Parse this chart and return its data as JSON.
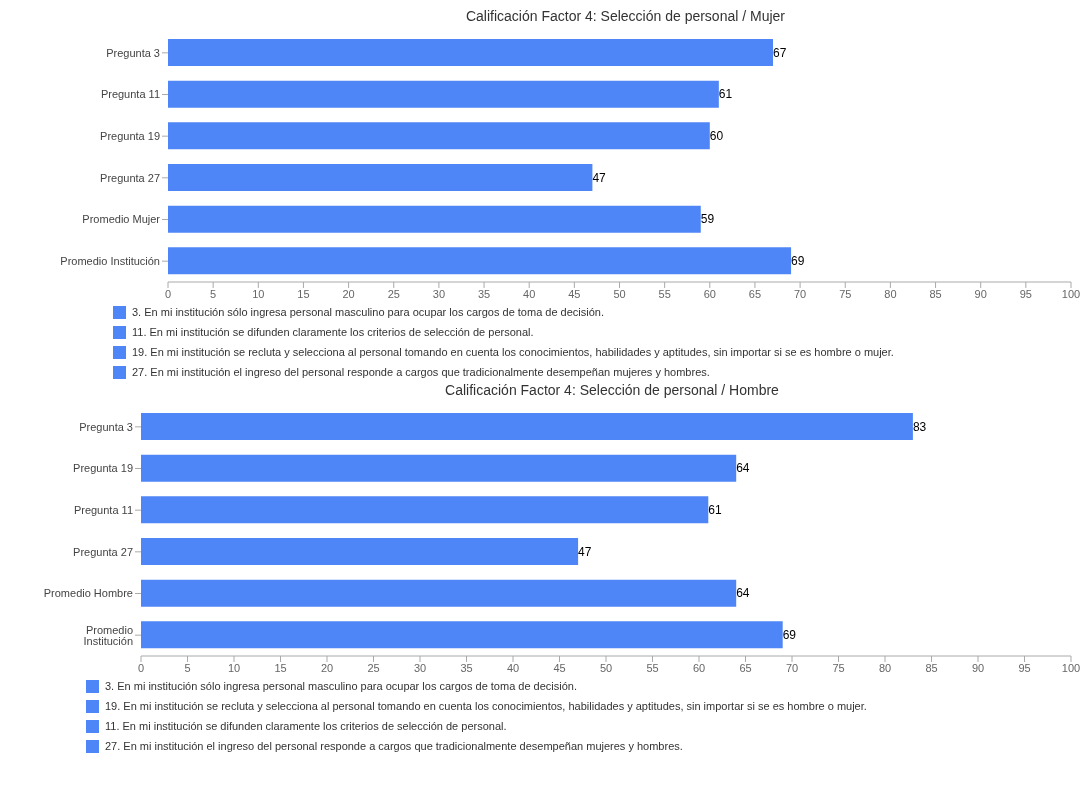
{
  "chart_data": [
    {
      "type": "bar",
      "orientation": "horizontal",
      "title": "Calificación Factor 4: Selección de personal / Mujer",
      "categories": [
        "Pregunta 3",
        "Pregunta 11",
        "Pregunta 19",
        "Pregunta 27",
        "Promedio Mujer",
        "Promedio Institución"
      ],
      "values": [
        67,
        61,
        60,
        47,
        59,
        69
      ],
      "color": "#4f86f7",
      "xlim": [
        0,
        100
      ],
      "xticks": [
        0,
        5,
        10,
        15,
        20,
        25,
        30,
        35,
        40,
        45,
        50,
        55,
        60,
        65,
        70,
        75,
        80,
        85,
        90,
        95,
        100
      ],
      "data_labels": true,
      "legend": false,
      "grid": false,
      "annotations": [
        "3. En mi institución sólo ingresa personal masculino para ocupar los cargos de toma de decisión.",
        "11. En mi institución se difunden claramente los criterios de selección de personal.",
        "19. En mi institución se recluta y selecciona al personal tomando en cuenta los conocimientos, habilidades y aptitudes, sin importar si se es hombre o mujer.",
        "27. En mi institución el ingreso del personal responde a cargos que tradicionalmente desempeñan mujeres y hombres."
      ]
    },
    {
      "type": "bar",
      "orientation": "horizontal",
      "title": "Calificación Factor 4: Selección de personal / Hombre",
      "categories": [
        "Pregunta 3",
        "Pregunta 19",
        "Pregunta 11",
        "Pregunta 27",
        "Promedio Hombre",
        "Promedio Institución"
      ],
      "values": [
        83,
        64,
        61,
        47,
        64,
        69
      ],
      "color": "#4f86f7",
      "xlim": [
        0,
        100
      ],
      "xticks": [
        0,
        5,
        10,
        15,
        20,
        25,
        30,
        35,
        40,
        45,
        50,
        55,
        60,
        65,
        70,
        75,
        80,
        85,
        90,
        95,
        100
      ],
      "data_labels": true,
      "legend": false,
      "grid": false,
      "annotations": [
        "3. En mi institución sólo ingresa personal masculino para ocupar los cargos de toma de decisión.",
        "19. En mi institución se recluta y selecciona al personal tomando en cuenta los conocimientos, habilidades y aptitudes, sin importar si se es hombre o mujer.",
        "11. En mi institución se difunden claramente los criterios de selección de personal.",
        "27. En mi institución el ingreso del personal responde a cargos que tradicionalmente desempeñan mujeres y hombres."
      ]
    }
  ]
}
